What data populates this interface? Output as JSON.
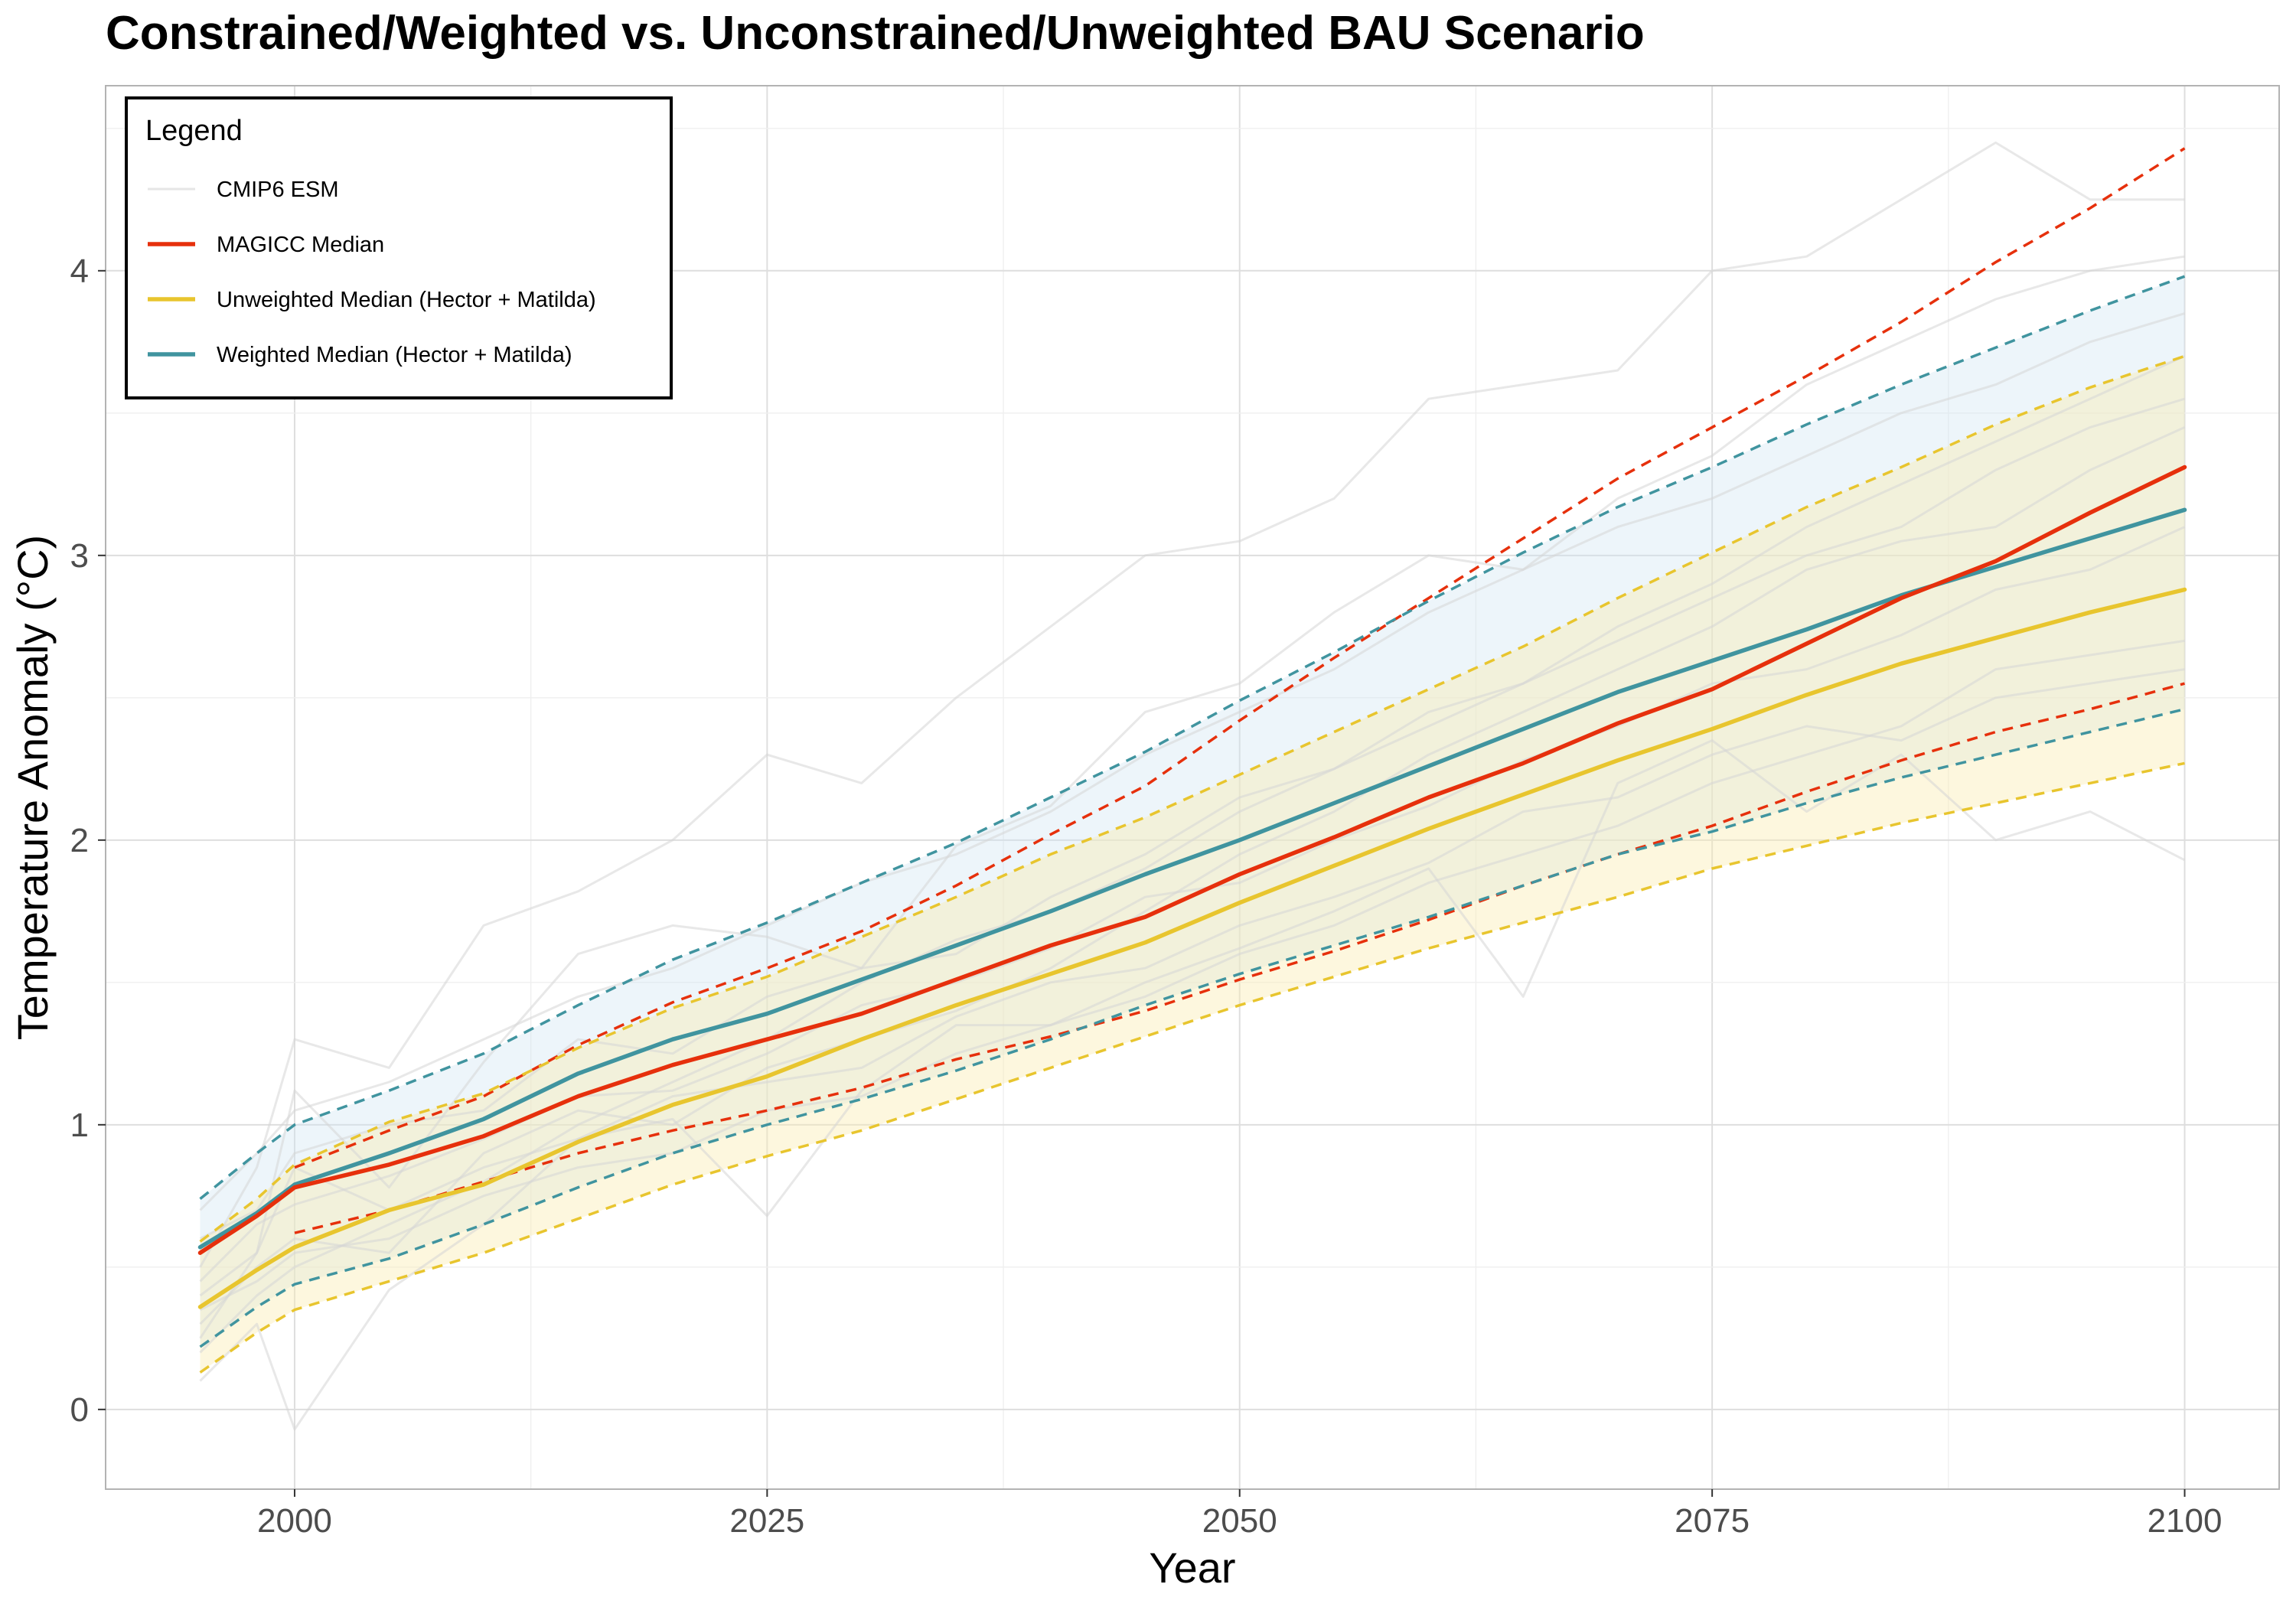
{
  "chart_data": {
    "type": "line",
    "title": "Constrained/Weighted vs. Unconstrained/Unweighted BAU Scenario",
    "xlabel": "Year",
    "ylabel": "Temperature Anomaly (°C)",
    "xlim": [
      1990,
      2105
    ],
    "ylim": [
      -0.28,
      4.65
    ],
    "x_ticks": [
      2000,
      2025,
      2050,
      2075,
      2100
    ],
    "y_ticks": [
      0,
      1,
      2,
      3,
      4
    ],
    "grid": true,
    "legend": {
      "title": "Legend",
      "position": "top-left",
      "entries": [
        {
          "label": "CMIP6 ESM",
          "color": "#e6e6e6"
        },
        {
          "label": "MAGICC Median",
          "color": "#e6300c"
        },
        {
          "label": "Unweighted Median (Hector + Matilda)",
          "color": "#e8c52e"
        },
        {
          "label": "Weighted Median (Hector + Matilda)",
          "color": "#40949f"
        }
      ]
    },
    "x": [
      1995,
      1998,
      2000,
      2005,
      2010,
      2015,
      2020,
      2025,
      2030,
      2035,
      2040,
      2045,
      2050,
      2055,
      2060,
      2065,
      2070,
      2075,
      2080,
      2085,
      2090,
      2095,
      2100
    ],
    "series": [
      {
        "name": "MAGICC Median",
        "color": "#e6300c",
        "values": [
          0.55,
          0.68,
          0.78,
          0.86,
          0.96,
          1.1,
          1.21,
          1.3,
          1.39,
          1.51,
          1.63,
          1.73,
          1.88,
          2.01,
          2.15,
          2.27,
          2.41,
          2.53,
          2.69,
          2.85,
          2.98,
          3.15,
          3.31
        ],
        "lower": [
          null,
          null,
          0.62,
          0.7,
          0.8,
          0.9,
          0.98,
          1.05,
          1.13,
          1.23,
          1.31,
          1.4,
          1.51,
          1.61,
          1.72,
          1.84,
          1.95,
          2.05,
          2.17,
          2.28,
          2.38,
          2.46,
          2.55
        ],
        "upper": [
          null,
          null,
          0.85,
          0.98,
          1.1,
          1.28,
          1.43,
          1.55,
          1.68,
          1.84,
          2.02,
          2.19,
          2.42,
          2.64,
          2.85,
          3.06,
          3.27,
          3.45,
          3.63,
          3.82,
          4.03,
          4.22,
          4.43
        ]
      },
      {
        "name": "Unweighted Median (Hector + Matilda)",
        "color": "#e8c52e",
        "values": [
          0.36,
          0.49,
          0.57,
          0.7,
          0.79,
          0.94,
          1.07,
          1.17,
          1.3,
          1.42,
          1.53,
          1.64,
          1.78,
          1.91,
          2.04,
          2.16,
          2.28,
          2.39,
          2.51,
          2.62,
          2.71,
          2.8,
          2.88
        ],
        "lower": [
          0.13,
          0.27,
          0.35,
          0.45,
          0.55,
          0.67,
          0.79,
          0.89,
          0.98,
          1.09,
          1.2,
          1.31,
          1.42,
          1.52,
          1.62,
          1.71,
          1.8,
          1.9,
          1.98,
          2.06,
          2.13,
          2.2,
          2.27
        ],
        "upper": [
          0.59,
          0.74,
          0.86,
          1.01,
          1.11,
          1.27,
          1.41,
          1.52,
          1.66,
          1.8,
          1.95,
          2.08,
          2.23,
          2.38,
          2.53,
          2.68,
          2.85,
          3.01,
          3.17,
          3.31,
          3.46,
          3.59,
          3.7
        ]
      },
      {
        "name": "Weighted Median (Hector + Matilda)",
        "color": "#40949f",
        "values": [
          0.57,
          0.69,
          0.79,
          0.9,
          1.02,
          1.18,
          1.3,
          1.39,
          1.51,
          1.63,
          1.75,
          1.88,
          2.0,
          2.13,
          2.26,
          2.39,
          2.52,
          2.63,
          2.74,
          2.86,
          2.96,
          3.06,
          3.16
        ],
        "lower": [
          0.22,
          0.36,
          0.44,
          0.53,
          0.65,
          0.78,
          0.9,
          1.0,
          1.09,
          1.19,
          1.3,
          1.42,
          1.53,
          1.63,
          1.73,
          1.84,
          1.95,
          2.03,
          2.13,
          2.22,
          2.3,
          2.38,
          2.46
        ],
        "upper": [
          0.74,
          0.9,
          1.0,
          1.12,
          1.25,
          1.42,
          1.58,
          1.71,
          1.85,
          1.99,
          2.15,
          2.31,
          2.49,
          2.66,
          2.84,
          3.01,
          3.17,
          3.31,
          3.46,
          3.6,
          3.73,
          3.86,
          3.98
        ]
      }
    ],
    "esm_series": [
      {
        "values": [
          0.25,
          0.55,
          1.12,
          0.78,
          1.22,
          1.6,
          1.7,
          1.66,
          1.55,
          1.98,
          2.12,
          2.45,
          2.55,
          2.8,
          3.0,
          2.95,
          3.2,
          3.35,
          3.6,
          3.75,
          3.9,
          4.0,
          4.05
        ]
      },
      {
        "values": [
          0.1,
          0.3,
          -0.07,
          0.42,
          0.65,
          0.95,
          1.02,
          0.68,
          1.12,
          1.35,
          1.35,
          1.5,
          1.62,
          1.75,
          1.9,
          1.45,
          2.2,
          2.35,
          2.1,
          2.3,
          2.0,
          2.1,
          1.93
        ]
      },
      {
        "values": [
          0.5,
          0.85,
          1.3,
          1.2,
          1.7,
          1.82,
          2.0,
          2.3,
          2.2,
          2.5,
          2.75,
          3.0,
          3.05,
          3.2,
          3.55,
          3.6,
          3.65,
          4.0,
          4.05,
          4.25,
          4.45,
          4.25,
          4.25
        ]
      },
      {
        "values": [
          0.3,
          0.5,
          0.6,
          0.55,
          0.9,
          1.05,
          1.0,
          1.2,
          1.3,
          1.4,
          1.55,
          1.75,
          1.95,
          2.1,
          2.3,
          2.45,
          2.6,
          2.75,
          2.95,
          3.05,
          3.1,
          3.3,
          3.45
        ]
      },
      {
        "values": [
          0.6,
          0.7,
          0.9,
          1.0,
          1.05,
          1.3,
          1.25,
          1.45,
          1.55,
          1.6,
          1.8,
          1.95,
          2.15,
          2.25,
          2.45,
          2.55,
          2.75,
          2.9,
          3.1,
          3.25,
          3.4,
          3.55,
          3.7
        ]
      },
      {
        "values": [
          0.45,
          0.65,
          0.72,
          0.82,
          0.95,
          1.1,
          1.12,
          1.25,
          1.42,
          1.5,
          1.62,
          1.8,
          1.85,
          2.0,
          2.12,
          2.28,
          2.4,
          2.55,
          2.6,
          2.72,
          2.88,
          2.95,
          3.1
        ]
      },
      {
        "values": [
          0.35,
          0.45,
          0.55,
          0.6,
          0.75,
          0.85,
          0.9,
          1.05,
          1.1,
          1.25,
          1.35,
          1.45,
          1.6,
          1.7,
          1.85,
          1.95,
          2.05,
          2.2,
          2.3,
          2.4,
          2.6,
          2.65,
          2.7
        ]
      },
      {
        "values": [
          0.7,
          0.9,
          1.05,
          1.15,
          1.3,
          1.45,
          1.55,
          1.7,
          1.85,
          1.95,
          2.1,
          2.3,
          2.45,
          2.6,
          2.8,
          2.95,
          3.1,
          3.2,
          3.35,
          3.5,
          3.6,
          3.75,
          3.85
        ]
      },
      {
        "values": [
          0.4,
          0.55,
          0.85,
          0.7,
          0.85,
          0.95,
          1.1,
          1.15,
          1.2,
          1.38,
          1.5,
          1.55,
          1.7,
          1.8,
          1.92,
          2.1,
          2.15,
          2.3,
          2.4,
          2.35,
          2.5,
          2.55,
          2.6
        ]
      },
      {
        "values": [
          0.2,
          0.4,
          0.5,
          0.65,
          0.8,
          1.0,
          1.15,
          1.3,
          1.5,
          1.65,
          1.75,
          1.9,
          2.1,
          2.25,
          2.4,
          2.55,
          2.7,
          2.85,
          3.0,
          3.1,
          3.3,
          3.45,
          3.55
        ]
      }
    ]
  }
}
